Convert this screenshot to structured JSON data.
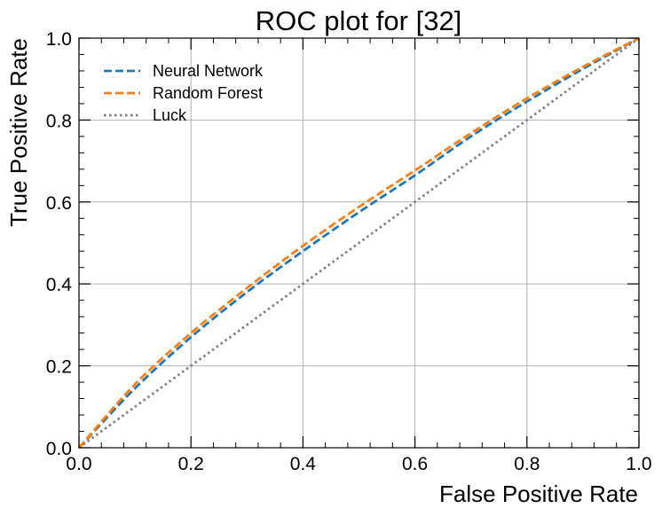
{
  "chart_data": {
    "type": "line",
    "title": "ROC plot for [32]",
    "xlabel": "False Positive Rate",
    "ylabel": "True Positive Rate",
    "xlim": [
      0,
      1
    ],
    "ylim": [
      0,
      1
    ],
    "x_ticks": [
      "0.0",
      "0.2",
      "0.4",
      "0.6",
      "0.8",
      "1.0"
    ],
    "y_ticks": [
      "0.0",
      "0.2",
      "0.4",
      "0.6",
      "0.8",
      "1.0"
    ],
    "grid": true,
    "legend_position": "upper-left",
    "series": [
      {
        "name": "Neural Network",
        "color": "#1f77b4",
        "style": "dashed",
        "x": [
          0.0,
          0.1,
          0.2,
          0.3,
          0.4,
          0.5,
          0.6,
          0.7,
          0.8,
          0.9,
          1.0
        ],
        "y": [
          0.0,
          0.145,
          0.27,
          0.38,
          0.48,
          0.575,
          0.665,
          0.76,
          0.845,
          0.925,
          1.0
        ]
      },
      {
        "name": "Random Forest",
        "color": "#ff7f0e",
        "style": "dashed",
        "x": [
          0.0,
          0.1,
          0.2,
          0.3,
          0.4,
          0.5,
          0.6,
          0.7,
          0.8,
          0.9,
          1.0
        ],
        "y": [
          0.0,
          0.155,
          0.28,
          0.39,
          0.493,
          0.588,
          0.677,
          0.768,
          0.853,
          0.93,
          1.0
        ]
      },
      {
        "name": "Luck",
        "color": "#808080",
        "style": "dotted",
        "x": [
          0.0,
          1.0
        ],
        "y": [
          0.0,
          1.0
        ]
      }
    ]
  }
}
